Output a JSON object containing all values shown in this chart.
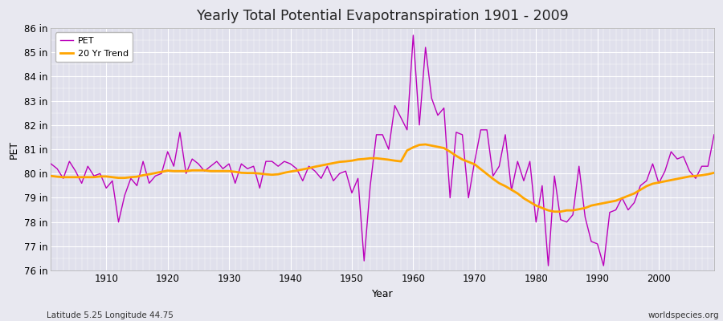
{
  "title": "Yearly Total Potential Evapotranspiration 1901 - 2009",
  "ylabel": "PET",
  "xlabel": "Year",
  "footnote_left": "Latitude 5.25 Longitude 44.75",
  "footnote_right": "worldspecies.org",
  "pet_color": "#bb00bb",
  "trend_color": "#ffa500",
  "bg_color": "#e8e8f0",
  "plot_bg_color": "#e0e0ec",
  "ylim": [
    76,
    86
  ],
  "ytick_labels": [
    "76 in",
    "77 in",
    "78 in",
    "79 in",
    "80 in",
    "81 in",
    "82 in",
    "83 in",
    "84 in",
    "85 in",
    "86 in"
  ],
  "ytick_values": [
    76,
    77,
    78,
    79,
    80,
    81,
    82,
    83,
    84,
    85,
    86
  ],
  "years": [
    1901,
    1902,
    1903,
    1904,
    1905,
    1906,
    1907,
    1908,
    1909,
    1910,
    1911,
    1912,
    1913,
    1914,
    1915,
    1916,
    1917,
    1918,
    1919,
    1920,
    1921,
    1922,
    1923,
    1924,
    1925,
    1926,
    1927,
    1928,
    1929,
    1930,
    1931,
    1932,
    1933,
    1934,
    1935,
    1936,
    1937,
    1938,
    1939,
    1940,
    1941,
    1942,
    1943,
    1944,
    1945,
    1946,
    1947,
    1948,
    1949,
    1950,
    1951,
    1952,
    1953,
    1954,
    1955,
    1956,
    1957,
    1958,
    1959,
    1960,
    1961,
    1962,
    1963,
    1964,
    1965,
    1966,
    1967,
    1968,
    1969,
    1970,
    1971,
    1972,
    1973,
    1974,
    1975,
    1976,
    1977,
    1978,
    1979,
    1980,
    1981,
    1982,
    1983,
    1984,
    1985,
    1986,
    1987,
    1988,
    1989,
    1990,
    1991,
    1992,
    1993,
    1994,
    1995,
    1996,
    1997,
    1998,
    1999,
    2000,
    2001,
    2002,
    2003,
    2004,
    2005,
    2006,
    2007,
    2008,
    2009
  ],
  "pet_values": [
    80.4,
    80.2,
    79.8,
    80.5,
    80.1,
    79.6,
    80.3,
    79.9,
    80.0,
    79.4,
    79.7,
    78.0,
    79.1,
    79.8,
    79.5,
    80.5,
    79.6,
    79.9,
    80.0,
    80.9,
    80.3,
    81.7,
    80.0,
    80.6,
    80.4,
    80.1,
    80.3,
    80.5,
    80.2,
    80.4,
    79.6,
    80.4,
    80.2,
    80.3,
    79.4,
    80.5,
    80.5,
    80.3,
    80.5,
    80.4,
    80.2,
    79.7,
    80.3,
    80.1,
    79.8,
    80.3,
    79.7,
    80.0,
    80.1,
    79.2,
    79.8,
    76.4,
    79.5,
    81.6,
    81.6,
    81.0,
    82.8,
    82.3,
    81.8,
    85.7,
    82.0,
    85.2,
    83.1,
    82.4,
    82.7,
    79.0,
    81.7,
    81.6,
    79.0,
    80.5,
    81.8,
    81.8,
    79.9,
    80.3,
    81.6,
    79.3,
    80.5,
    79.7,
    80.5,
    78.0,
    79.5,
    76.2,
    79.9,
    78.1,
    78.0,
    78.3,
    80.3,
    78.2,
    77.2,
    77.1,
    76.2,
    78.4,
    78.5,
    79.0,
    78.5,
    78.8,
    79.5,
    79.7,
    80.4,
    79.6,
    80.1,
    80.9,
    80.6,
    80.7,
    80.1,
    79.8,
    80.3,
    80.3,
    81.6
  ],
  "trend_values": [
    79.9,
    79.87,
    79.85,
    79.85,
    79.85,
    79.85,
    79.85,
    79.85,
    79.88,
    79.88,
    79.85,
    79.82,
    79.82,
    79.85,
    79.87,
    79.93,
    79.97,
    80.02,
    80.07,
    80.12,
    80.1,
    80.1,
    80.1,
    80.13,
    80.13,
    80.13,
    80.1,
    80.1,
    80.1,
    80.1,
    80.07,
    80.03,
    80.02,
    80.02,
    80.0,
    79.97,
    79.95,
    79.97,
    80.03,
    80.08,
    80.12,
    80.17,
    80.22,
    80.28,
    80.33,
    80.38,
    80.43,
    80.48,
    80.5,
    80.53,
    80.58,
    80.6,
    80.63,
    80.63,
    80.6,
    80.57,
    80.53,
    80.5,
    80.95,
    81.08,
    81.18,
    81.2,
    81.15,
    81.1,
    81.05,
    80.9,
    80.73,
    80.58,
    80.48,
    80.38,
    80.18,
    79.98,
    79.78,
    79.6,
    79.48,
    79.33,
    79.18,
    78.98,
    78.83,
    78.68,
    78.58,
    78.48,
    78.43,
    78.43,
    78.48,
    78.48,
    78.53,
    78.58,
    78.68,
    78.73,
    78.78,
    78.83,
    78.88,
    78.98,
    79.08,
    79.18,
    79.33,
    79.48,
    79.58,
    79.63,
    79.68,
    79.73,
    79.78,
    79.83,
    79.88,
    79.9,
    79.93,
    79.97,
    80.03
  ]
}
